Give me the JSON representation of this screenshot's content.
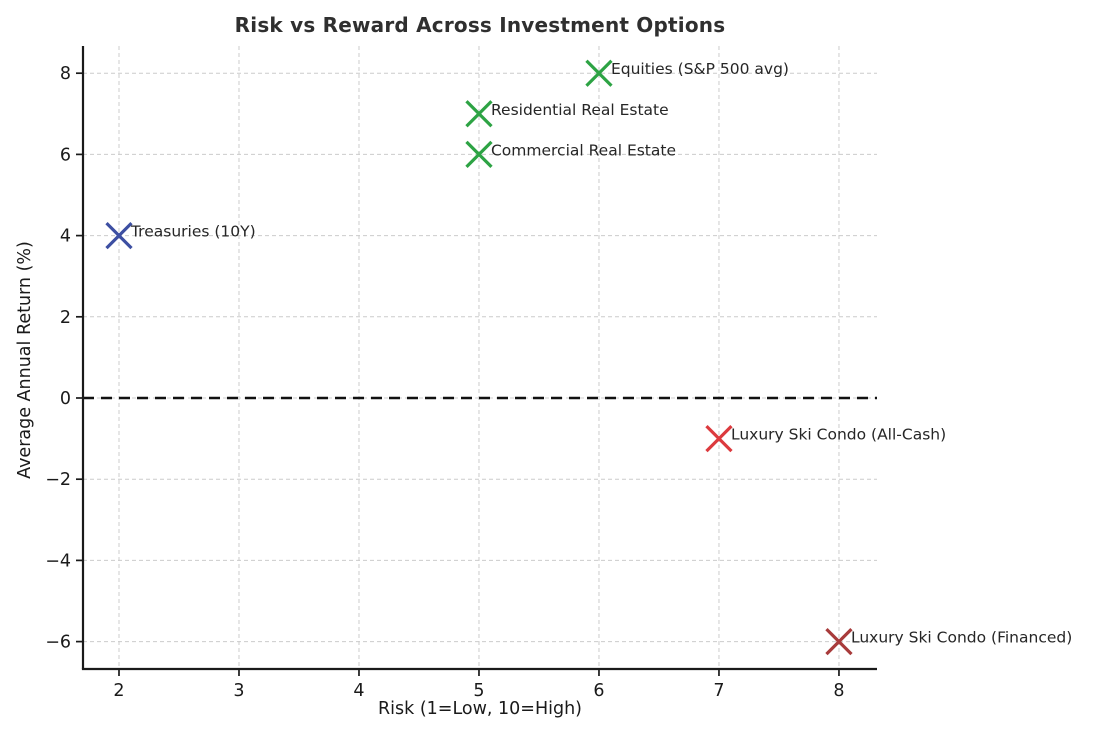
{
  "figure": {
    "background_color": "#ffffff",
    "text_color": "#1a1a1a",
    "title_color": "#2f2f2f",
    "grid_color": "#cccccc",
    "spine_color": "#1a1a1a",
    "zero_line_color": "#111111",
    "annotation_color": "#262626"
  },
  "chart_data": {
    "type": "scatter",
    "title": "Risk vs Reward Across Investment Options",
    "xlabel": "Risk (1=Low, 10=High)",
    "ylabel": "Average Annual Return (%)",
    "xlim": [
      1.7,
      8.317
    ],
    "ylim": [
      -6.675,
      8.67
    ],
    "xticks": [
      2,
      3,
      4,
      5,
      6,
      7,
      8
    ],
    "yticks": [
      -6,
      -4,
      -2,
      0,
      2,
      4,
      6,
      8
    ],
    "grid": true,
    "legend": "none",
    "marker": "x",
    "zero_line": {
      "y": 0,
      "style": "dashed",
      "color": "#111111"
    },
    "points": [
      {
        "label": "Treasuries (10Y)",
        "x": 2,
        "y": 4,
        "color": "#3d4fa2"
      },
      {
        "label": "Residential Real Estate",
        "x": 5,
        "y": 7,
        "color": "#2da344"
      },
      {
        "label": "Commercial Real Estate",
        "x": 5,
        "y": 6,
        "color": "#2da344"
      },
      {
        "label": "Equities (S&P 500 avg)",
        "x": 6,
        "y": 8,
        "color": "#2da344"
      },
      {
        "label": "Luxury Ski Condo (All-Cash)",
        "x": 7,
        "y": -1,
        "color": "#dc3a3e"
      },
      {
        "label": "Luxury Ski Condo (Financed)",
        "x": 8,
        "y": -6,
        "color": "#a83b3b"
      }
    ]
  }
}
